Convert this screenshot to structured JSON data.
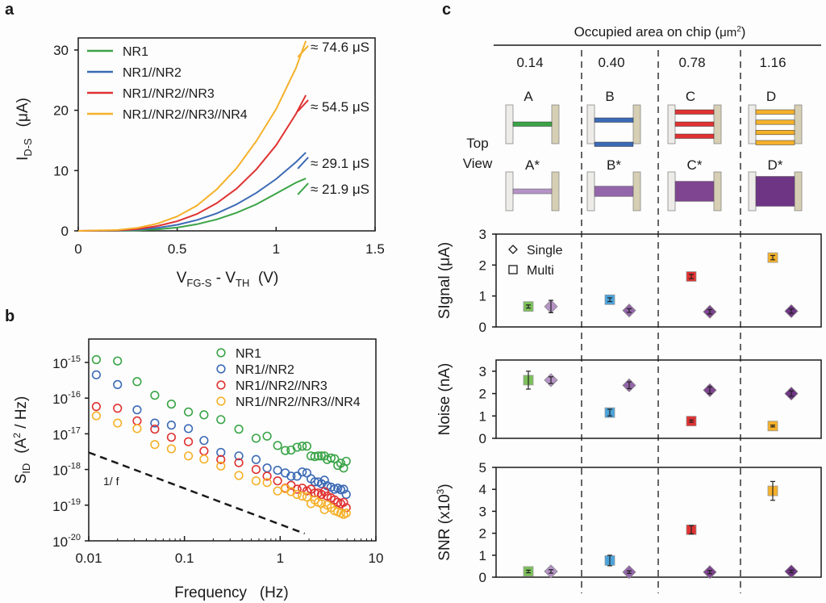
{
  "panels": {
    "a": "a",
    "b": "b",
    "c": "c"
  },
  "chart_data": [
    {
      "id": "a",
      "type": "line",
      "title": "",
      "xlabel": "V_FG-S - V_TH  (V)",
      "xlabel_parts": {
        "main1": "V",
        "sub1": "FG-S",
        "sep": " - ",
        "main2": "V",
        "sub2": "TH",
        "unit": "  (V)"
      },
      "ylabel": "I_D-S  (μA)",
      "ylabel_parts": {
        "main": "I",
        "sub": "D-S",
        "unit": "(μA)"
      },
      "xlim": [
        0,
        1.5
      ],
      "ylim": [
        0,
        32
      ],
      "xticks": [
        0,
        0.5,
        1,
        1.5
      ],
      "xtick_labels": [
        "0",
        "0.5",
        "1",
        "1.5"
      ],
      "yticks": [
        0,
        10,
        20,
        30
      ],
      "ytick_labels": [
        "0",
        "10",
        "20",
        "30"
      ],
      "legend_position": "top-left",
      "series": [
        {
          "name": "NR1",
          "color": "#3aa447",
          "x": [
            0,
            0.2,
            0.3,
            0.4,
            0.5,
            0.6,
            0.7,
            0.8,
            0.9,
            1.0,
            1.1,
            1.15
          ],
          "y": [
            0,
            0.02,
            0.08,
            0.25,
            0.55,
            1.1,
            1.9,
            3.0,
            4.4,
            6.2,
            8.0,
            8.7
          ],
          "annotation": "≈ 21.9 μS"
        },
        {
          "name": "NR1//NR2",
          "color": "#3c6ab5",
          "x": [
            0,
            0.2,
            0.3,
            0.4,
            0.5,
            0.6,
            0.7,
            0.8,
            0.9,
            1.0,
            1.1,
            1.15
          ],
          "y": [
            0,
            0.05,
            0.2,
            0.5,
            1.0,
            1.8,
            2.9,
            4.4,
            6.3,
            8.6,
            11.4,
            13.0
          ],
          "annotation": "≈ 29.1 μS"
        },
        {
          "name": "NR1//NR2//NR3",
          "color": "#e03232",
          "x": [
            0,
            0.2,
            0.3,
            0.4,
            0.5,
            0.6,
            0.7,
            0.8,
            0.9,
            1.0,
            1.1,
            1.15
          ],
          "y": [
            0,
            0.08,
            0.3,
            0.8,
            1.6,
            2.8,
            4.6,
            7.0,
            10.2,
            14.2,
            19.4,
            22.5
          ],
          "annotation": "≈ 54.5 μS"
        },
        {
          "name": "NR1//NR2//NR3//NR4",
          "color": "#f5b12a",
          "x": [
            0,
            0.2,
            0.3,
            0.4,
            0.5,
            0.6,
            0.7,
            0.8,
            0.9,
            1.0,
            1.1,
            1.15
          ],
          "y": [
            0,
            0.15,
            0.5,
            1.2,
            2.4,
            4.2,
            6.9,
            10.4,
            14.9,
            20.2,
            27.0,
            31.5
          ],
          "annotation": "≈ 74.6 μS"
        }
      ]
    },
    {
      "id": "b",
      "type": "scatter",
      "title": "",
      "xlabel": "Frequency   (Hz)",
      "ylabel": "S_ID  (A² / Hz)",
      "ylabel_parts": {
        "main": "S",
        "sub": "ID",
        "unit": "(A",
        "sup": "2",
        "unit2": " / Hz)"
      },
      "xscale": "log",
      "yscale": "log",
      "xlim": [
        0.01,
        10
      ],
      "ylim": [
        1e-20,
        5e-15
      ],
      "xticks": [
        0.01,
        0.1,
        1,
        10
      ],
      "xtick_labels": [
        "0.01",
        "0.1",
        "1",
        "10"
      ],
      "yticks": [
        1e-15,
        1e-16,
        1e-17,
        1e-18,
        1e-19,
        1e-20
      ],
      "ytick_labels": [
        {
          "base": "10",
          "exp": "-15"
        },
        {
          "base": "10",
          "exp": "-16"
        },
        {
          "base": "10",
          "exp": "-17"
        },
        {
          "base": "10",
          "exp": "-18"
        },
        {
          "base": "10",
          "exp": "-19"
        },
        {
          "base": "10",
          "exp": "-20"
        }
      ],
      "legend_position": "top-right",
      "reference_line": {
        "label": "1/ f",
        "x": [
          0.01,
          1.8
        ],
        "y": [
          3e-18,
          1.6e-20
        ]
      },
      "series": [
        {
          "name": "NR1",
          "color": "#3aa447",
          "x": [
            0.012,
            0.02,
            0.032,
            0.049,
            0.073,
            0.11,
            0.16,
            0.24,
            0.37,
            0.56,
            0.73,
            0.94,
            1.13,
            1.3,
            1.5,
            1.7,
            1.9,
            2.1,
            2.3,
            2.5,
            2.7,
            2.9,
            3.1,
            3.4,
            3.7,
            4.0,
            4.3,
            4.6,
            4.9
          ],
          "y": [
            1.2e-15,
            1.1e-15,
            2.9e-16,
            1.2e-16,
            6.8e-17,
            4.1e-17,
            3.4e-17,
            2.5e-17,
            1.35e-17,
            7.5e-18,
            8.6e-18,
            4.7e-18,
            3.4e-18,
            3.5e-18,
            4.2e-18,
            4.5e-18,
            4.5e-18,
            2.4e-18,
            2.3e-18,
            2.4e-18,
            2.4e-18,
            2.4e-18,
            1.9e-18,
            2.1e-18,
            2e-18,
            1.3e-18,
            1.5e-18,
            1.1e-18,
            1.7e-18
          ]
        },
        {
          "name": "NR1//NR2",
          "color": "#3c6ab5",
          "x": [
            0.012,
            0.02,
            0.032,
            0.049,
            0.073,
            0.11,
            0.16,
            0.24,
            0.37,
            0.56,
            0.73,
            0.94,
            1.13,
            1.3,
            1.5,
            1.7,
            1.9,
            2.1,
            2.3,
            2.5,
            2.7,
            2.9,
            3.1,
            3.4,
            3.7,
            4.0,
            4.3,
            4.6,
            4.9
          ],
          "y": [
            4.5e-16,
            2.4e-16,
            4.7e-17,
            2e-17,
            1.75e-17,
            1.4e-17,
            6.5e-18,
            3e-18,
            2.4e-18,
            1.9e-18,
            1.1e-18,
            9.5e-19,
            8e-19,
            6.5e-19,
            6.5e-19,
            8.5e-19,
            8e-19,
            5.5e-19,
            4.5e-19,
            4.5e-19,
            4e-19,
            5e-19,
            3.5e-19,
            3.2e-19,
            2.8e-19,
            3e-19,
            2.7e-19,
            2.8e-19,
            2e-19
          ]
        },
        {
          "name": "NR1//NR2//NR3",
          "color": "#e03232",
          "x": [
            0.012,
            0.02,
            0.032,
            0.049,
            0.073,
            0.11,
            0.16,
            0.24,
            0.37,
            0.56,
            0.73,
            0.94,
            1.13,
            1.3,
            1.5,
            1.7,
            1.9,
            2.1,
            2.3,
            2.5,
            2.7,
            2.9,
            3.1,
            3.4,
            3.7,
            4.0,
            4.3,
            4.6,
            4.9
          ],
          "y": [
            5.8e-17,
            5.2e-17,
            2.3e-17,
            1.35e-17,
            8e-18,
            6e-18,
            3.3e-18,
            1.9e-18,
            1.55e-18,
            1e-18,
            6.5e-19,
            4.8e-19,
            3e-19,
            3.6e-19,
            2.8e-19,
            3e-19,
            2.5e-19,
            2.8e-19,
            2.2e-19,
            2.2e-19,
            2e-19,
            2.4e-19,
            1.8e-19,
            1.6e-19,
            1.4e-19,
            1.2e-19,
            1.1e-19,
            1.2e-19,
            8.5e-20
          ]
        },
        {
          "name": "NR1//NR2//NR3//NR4",
          "color": "#f5b12a",
          "x": [
            0.012,
            0.02,
            0.032,
            0.049,
            0.073,
            0.11,
            0.16,
            0.24,
            0.37,
            0.56,
            0.73,
            0.94,
            1.13,
            1.3,
            1.5,
            1.7,
            1.9,
            2.1,
            2.3,
            2.5,
            2.7,
            2.9,
            3.1,
            3.4,
            3.7,
            4.0,
            4.3,
            4.6,
            4.9
          ],
          "y": [
            3.2e-17,
            2e-17,
            1.4e-17,
            5e-18,
            3.8e-18,
            2.4e-18,
            1.95e-18,
            1.25e-18,
            6.8e-19,
            4.8e-19,
            4.3e-19,
            2.5e-19,
            2.9e-19,
            2.4e-19,
            2e-19,
            1.8e-19,
            1.7e-19,
            1.1e-19,
            1.4e-19,
            1.2e-19,
            1.1e-19,
            7.5e-20,
            1e-19,
            8.5e-20,
            7e-20,
            6.5e-20,
            6e-20,
            5.5e-20,
            6e-20
          ]
        }
      ]
    },
    {
      "id": "c",
      "type": "scatter",
      "header": "Occupied area on chip (μm²)",
      "header_parts": {
        "text": "Occupied area on chip (",
        "unit": "μm",
        "sup": "2",
        "close": ")"
      },
      "top_view_label": [
        "Top",
        "View"
      ],
      "groups": [
        {
          "area": "0.14",
          "multi_label": "A",
          "single_label": "A*",
          "multi_color": "#3aa447",
          "nr_count": 1,
          "single_color": "#b593c6",
          "single_fill_fraction": 0.14
        },
        {
          "area": "0.40",
          "multi_label": "B",
          "single_label": "B*",
          "multi_color": "#3c6ab5",
          "nr_count": 2,
          "single_color": "#9466aa",
          "single_fill_fraction": 0.4
        },
        {
          "area": "0.78",
          "multi_label": "C",
          "single_label": "C*",
          "multi_color": "#e03232",
          "nr_count": 3,
          "single_color": "#7f4590",
          "single_fill_fraction": 0.78
        },
        {
          "area": "1.16",
          "multi_label": "D",
          "single_label": "D*",
          "multi_color": "#f5b12a",
          "nr_count": 4,
          "single_color": "#6f3585",
          "single_fill_fraction": 1.16
        }
      ],
      "legend": [
        {
          "marker": "diamond",
          "label": "Single"
        },
        {
          "marker": "square",
          "label": "Multi"
        }
      ],
      "legend_position": "top-left",
      "subplots": [
        {
          "name": "signal",
          "ylabel": "SIgnal (μA)",
          "ylim": [
            0,
            3
          ],
          "yticks": [
            0,
            1,
            2,
            3
          ],
          "ytick_labels": [
            "0",
            "1",
            "2",
            "3"
          ],
          "multi": {
            "values": [
              0.66,
              0.88,
              1.63,
              2.24
            ],
            "errors": [
              0.05,
              0.06,
              0.07,
              0.07
            ],
            "colors": [
              "#7cc15a",
              "#4aa3dc",
              "#e03232",
              "#f5b12a"
            ]
          },
          "single": {
            "values": [
              0.66,
              0.53,
              0.49,
              0.51
            ],
            "errors": [
              0.2,
              0.06,
              0.07,
              0.07
            ],
            "colors": [
              "#b593c6",
              "#9466aa",
              "#7f4590",
              "#6f3585"
            ]
          }
        },
        {
          "name": "noise",
          "ylabel": "Noise  (nA)",
          "ylim": [
            0,
            3.5
          ],
          "yticks": [
            0,
            1,
            2,
            3
          ],
          "ytick_labels": [
            "0",
            "1",
            "2",
            "3"
          ],
          "multi": {
            "values": [
              2.6,
              1.15,
              0.77,
              0.55
            ],
            "errors": [
              0.4,
              0.15,
              0.05,
              0.04
            ],
            "colors": [
              "#7cc15a",
              "#4aa3dc",
              "#e03232",
              "#f5b12a"
            ]
          },
          "single": {
            "values": [
              2.6,
              2.37,
              2.15,
              2.0
            ],
            "errors": [
              0.15,
              0.15,
              0.15,
              0.12
            ],
            "colors": [
              "#b593c6",
              "#9466aa",
              "#7f4590",
              "#6f3585"
            ]
          }
        },
        {
          "name": "snr",
          "ylabel": "SNR (x10³)",
          "ylabel_parts": {
            "text": "SNR (x10",
            "sup": "3",
            "close": ")"
          },
          "ylim": [
            0,
            5
          ],
          "yticks": [
            0,
            1,
            2,
            3,
            4,
            5
          ],
          "ytick_labels": [
            "0",
            "1",
            "2",
            "3",
            "4",
            "5"
          ],
          "multi": {
            "values": [
              0.26,
              0.76,
              2.16,
              3.93
            ],
            "errors": [
              0.06,
              0.24,
              0.19,
              0.43
            ],
            "colors": [
              "#7cc15a",
              "#4aa3dc",
              "#e03232",
              "#f5b12a"
            ]
          },
          "single": {
            "values": [
              0.26,
              0.23,
              0.23,
              0.26
            ],
            "errors": [
              0.08,
              0.06,
              0.07,
              0.06
            ],
            "colors": [
              "#b593c6",
              "#9466aa",
              "#7f4590",
              "#6f3585"
            ]
          }
        }
      ]
    }
  ]
}
